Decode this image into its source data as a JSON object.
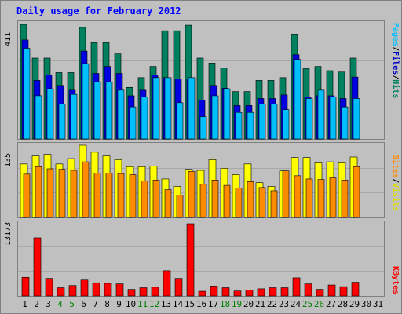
{
  "title": "Daily usage for February 2012",
  "colors": {
    "hits": "#00805f",
    "files": "#0000e0",
    "pages": "#00bfff",
    "visits": "#ffff00",
    "sites": "#ff8c00",
    "kbytes": "#ff0000"
  },
  "side_labels": {
    "top": [
      "Pages",
      "Files",
      "Hits"
    ],
    "middle": [
      "Sites",
      "Visits"
    ],
    "bottom": [
      "KBytes"
    ]
  },
  "chart_data": [
    {
      "type": "bar",
      "panel": "hits-files-pages",
      "ymax_label": "411",
      "ylim": [
        0,
        411
      ],
      "categories": [
        "1",
        "2",
        "3",
        "4",
        "5",
        "6",
        "7",
        "8",
        "9",
        "10",
        "11",
        "12",
        "13",
        "14",
        "15",
        "16",
        "17",
        "18",
        "19",
        "20",
        "21",
        "22",
        "23",
        "24",
        "25",
        "26",
        "27",
        "28",
        "29",
        "30",
        "31"
      ],
      "series": [
        {
          "name": "Hits",
          "values": [
            411,
            290,
            290,
            238,
            238,
            400,
            345,
            345,
            305,
            185,
            220,
            260,
            388,
            388,
            408,
            290,
            272,
            255,
            170,
            170,
            210,
            210,
            220,
            376,
            252,
            260,
            245,
            240,
            290,
            null,
            null
          ]
        },
        {
          "name": "Files",
          "values": [
            355,
            210,
            230,
            192,
            175,
            315,
            235,
            260,
            235,
            155,
            175,
            230,
            220,
            215,
            215,
            140,
            192,
            182,
            120,
            120,
            145,
            145,
            158,
            302,
            150,
            155,
            155,
            145,
            222,
            null,
            null
          ]
        },
        {
          "name": "Pages",
          "values": [
            325,
            155,
            180,
            125,
            160,
            270,
            205,
            205,
            175,
            115,
            150,
            220,
            220,
            130,
            220,
            80,
            155,
            180,
            95,
            95,
            125,
            125,
            105,
            285,
            145,
            175,
            150,
            115,
            145,
            null,
            null
          ]
        }
      ]
    },
    {
      "type": "bar",
      "panel": "visits-sites",
      "ymax_label": "135",
      "ylim": [
        0,
        135
      ],
      "categories": [
        "1",
        "2",
        "3",
        "4",
        "5",
        "6",
        "7",
        "8",
        "9",
        "10",
        "11",
        "12",
        "13",
        "14",
        "15",
        "16",
        "17",
        "18",
        "19",
        "20",
        "21",
        "22",
        "23",
        "24",
        "25",
        "26",
        "27",
        "28",
        "29",
        "30",
        "31"
      ],
      "series": [
        {
          "name": "Visits",
          "values": [
            100,
            115,
            118,
            100,
            110,
            135,
            122,
            115,
            108,
            95,
            95,
            96,
            72,
            58,
            90,
            88,
            108,
            92,
            80,
            100,
            65,
            58,
            87,
            112,
            112,
            102,
            104,
            102,
            113,
            null,
            null
          ]
        },
        {
          "name": "Sites",
          "values": [
            81,
            95,
            91,
            90,
            88,
            104,
            83,
            83,
            82,
            80,
            68,
            70,
            52,
            42,
            86,
            62,
            70,
            60,
            55,
            67,
            56,
            50,
            87,
            78,
            72,
            71,
            74,
            70,
            95,
            null,
            null
          ]
        }
      ]
    },
    {
      "type": "bar",
      "panel": "kbytes",
      "ymax_label": "13173",
      "ylim": [
        0,
        13173
      ],
      "categories": [
        "1",
        "2",
        "3",
        "4",
        "5",
        "6",
        "7",
        "8",
        "9",
        "10",
        "11",
        "12",
        "13",
        "14",
        "15",
        "16",
        "17",
        "18",
        "19",
        "20",
        "21",
        "22",
        "23",
        "24",
        "25",
        "26",
        "27",
        "28",
        "29",
        "30",
        "31"
      ],
      "series": [
        {
          "name": "KBytes",
          "values": [
            3400,
            10600,
            3200,
            1500,
            1900,
            2900,
            2400,
            2300,
            2200,
            1200,
            1500,
            1600,
            4600,
            3200,
            13173,
            850,
            1800,
            1500,
            900,
            1100,
            1300,
            1500,
            1500,
            3300,
            2200,
            1200,
            2000,
            1700,
            2500,
            null,
            null
          ]
        }
      ]
    }
  ],
  "days": [
    {
      "label": "1",
      "weekend": false
    },
    {
      "label": "2",
      "weekend": false
    },
    {
      "label": "3",
      "weekend": false
    },
    {
      "label": "4",
      "weekend": true
    },
    {
      "label": "5",
      "weekend": true
    },
    {
      "label": "6",
      "weekend": false
    },
    {
      "label": "7",
      "weekend": false
    },
    {
      "label": "8",
      "weekend": false
    },
    {
      "label": "9",
      "weekend": false
    },
    {
      "label": "10",
      "weekend": false
    },
    {
      "label": "11",
      "weekend": true
    },
    {
      "label": "12",
      "weekend": true
    },
    {
      "label": "13",
      "weekend": false
    },
    {
      "label": "14",
      "weekend": false
    },
    {
      "label": "15",
      "weekend": false
    },
    {
      "label": "16",
      "weekend": false
    },
    {
      "label": "17",
      "weekend": false
    },
    {
      "label": "18",
      "weekend": true
    },
    {
      "label": "19",
      "weekend": true
    },
    {
      "label": "20",
      "weekend": false
    },
    {
      "label": "21",
      "weekend": false
    },
    {
      "label": "22",
      "weekend": false
    },
    {
      "label": "23",
      "weekend": false
    },
    {
      "label": "24",
      "weekend": false
    },
    {
      "label": "25",
      "weekend": true
    },
    {
      "label": "26",
      "weekend": true
    },
    {
      "label": "27",
      "weekend": false
    },
    {
      "label": "28",
      "weekend": false
    },
    {
      "label": "29",
      "weekend": false
    },
    {
      "label": "30",
      "weekend": false
    },
    {
      "label": "31",
      "weekend": false
    }
  ]
}
